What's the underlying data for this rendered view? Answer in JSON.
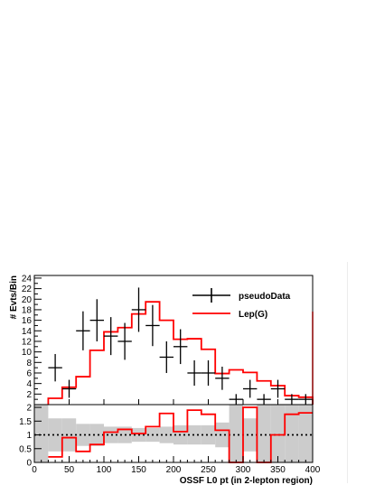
{
  "chart_data": [
    {
      "type": "histogram-with-points",
      "ylabel": "# Evts/Bin",
      "xlabel": "",
      "xlim": [
        0,
        400
      ],
      "ylim": [
        0,
        24.5
      ],
      "y_ticks": [
        2,
        4,
        6,
        8,
        10,
        12,
        14,
        16,
        18,
        20,
        22,
        24
      ],
      "y_tick_labels": [
        "2",
        "4",
        "6",
        "8",
        "10",
        "12",
        "14",
        "16",
        "18",
        "20",
        "22",
        "24"
      ],
      "grid": false,
      "legend_position": "top-right",
      "bin_edges": [
        20,
        40,
        60,
        80,
        100,
        120,
        140,
        160,
        180,
        200,
        220,
        240,
        260,
        280,
        300,
        320,
        340,
        360,
        380,
        400
      ],
      "series": [
        {
          "name": "pseudoData",
          "style": "points-with-errors",
          "color": "#000000",
          "x": [
            30,
            50,
            70,
            90,
            110,
            130,
            150,
            170,
            190,
            210,
            230,
            250,
            270,
            290,
            310,
            330,
            350,
            370,
            390
          ],
          "y": [
            7,
            3,
            14,
            16,
            13,
            12,
            18,
            15,
            9,
            11,
            6,
            6,
            5,
            1,
            3,
            1,
            3,
            1,
            1
          ],
          "yerr": [
            2.6,
            1.7,
            3.7,
            4.0,
            3.6,
            3.5,
            4.2,
            3.9,
            3.0,
            3.3,
            2.4,
            2.4,
            2.2,
            1.0,
            1.7,
            1.0,
            1.7,
            1.0,
            1.0
          ]
        },
        {
          "name": "Lep(G)",
          "style": "step",
          "color": "#ff0000",
          "values": [
            1.2,
            3.3,
            5.3,
            10.3,
            13.8,
            14.6,
            17.2,
            19.5,
            16.0,
            12.4,
            12.5,
            10.5,
            5.9,
            6.6,
            6.1,
            4.5,
            3.6,
            1.7,
            1.4
          ]
        }
      ]
    },
    {
      "type": "ratio-histogram",
      "xlabel": "OSSF L0 pt (in 2-lepton region)",
      "xlim": [
        0,
        400
      ],
      "ylim": [
        0,
        2.1
      ],
      "x_ticks": [
        0,
        50,
        100,
        150,
        200,
        250,
        300,
        350,
        400
      ],
      "x_tick_labels": [
        "0",
        "50",
        "100",
        "150",
        "200",
        "250",
        "300",
        "350",
        "400"
      ],
      "y_ticks": [
        0,
        0.5,
        1,
        1.5,
        2
      ],
      "y_tick_labels": [
        "0",
        "0.5",
        "1",
        "1.5",
        "2"
      ],
      "reference_line": 1,
      "bin_edges": [
        20,
        40,
        60,
        80,
        100,
        120,
        140,
        160,
        180,
        200,
        220,
        240,
        260,
        280,
        300,
        320,
        340,
        360,
        380,
        400
      ],
      "ratio_values": [
        0.2,
        0.9,
        0.4,
        0.65,
        1.1,
        1.2,
        1.05,
        1.3,
        1.78,
        1.12,
        1.9,
        1.75,
        1.17,
        0.0,
        2.0,
        0.0,
        1.0,
        1.75,
        1.8
      ],
      "band_low": [
        0.4,
        0.4,
        0.6,
        0.6,
        0.7,
        0.7,
        0.75,
        0.75,
        0.7,
        0.65,
        0.65,
        0.65,
        0.55,
        0.0,
        0.4,
        0.0,
        0.0,
        0.0,
        0.0
      ],
      "band_high": [
        1.6,
        1.6,
        1.4,
        1.4,
        1.3,
        1.3,
        1.25,
        1.25,
        1.3,
        1.35,
        1.35,
        1.35,
        1.45,
        2.1,
        1.6,
        2.1,
        2.1,
        2.1,
        2.1
      ],
      "band_color": "#cccccc",
      "line_color": "#ff0000"
    }
  ]
}
